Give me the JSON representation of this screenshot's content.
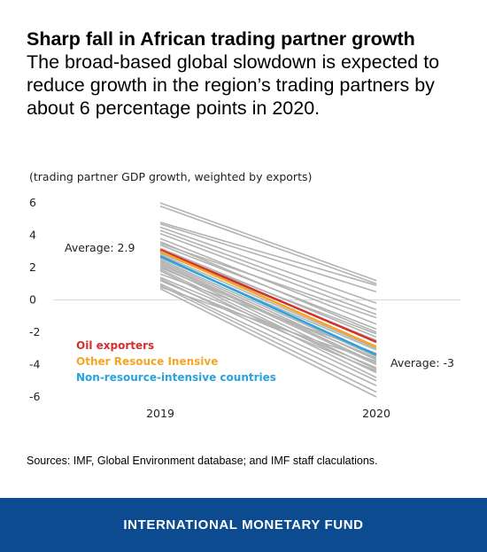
{
  "header": {
    "title": "Sharp fall in African trading partner growth",
    "subtitle": "The broad-based global slowdown is expected to reduce growth in the region’s trading partners by about 6 percentage points in 2020."
  },
  "colors": {
    "oil": "#d32f2f",
    "other_resource": "#f5a623",
    "non_resource": "#29a3dd",
    "countries": "#b3b3b3",
    "footer": "#0c4b8f"
  },
  "chart_data": {
    "type": "line",
    "title": "",
    "ylabel": "(trading partner GDP growth, weighted by exports)",
    "x": [
      "2019",
      "2020"
    ],
    "ylim": [
      -6,
      6
    ],
    "yticks": [
      "6",
      "4",
      "2",
      "0",
      "-2",
      "-4",
      "-6"
    ],
    "grid": false,
    "legend": "middle-left",
    "series": [
      {
        "name": "Oil exporters",
        "values": [
          3.1,
          -2.6
        ]
      },
      {
        "name": "Other Resouce Inensive",
        "values": [
          3.0,
          -2.9
        ]
      },
      {
        "name": "Non-resource-intensive countries",
        "values": [
          2.7,
          -3.4
        ]
      }
    ],
    "country_lines": [
      [
        6.0,
        1.2
      ],
      [
        5.8,
        1.0
      ],
      [
        4.8,
        0.9
      ],
      [
        4.7,
        0.5
      ],
      [
        4.5,
        -0.2
      ],
      [
        4.3,
        -0.6
      ],
      [
        4.1,
        -0.9
      ],
      [
        3.8,
        -1.5
      ],
      [
        3.6,
        -2.0
      ],
      [
        3.5,
        -1.1
      ],
      [
        3.4,
        -1.8
      ],
      [
        3.2,
        -2.3
      ],
      [
        3.0,
        -2.1
      ],
      [
        2.9,
        -2.5
      ],
      [
        2.8,
        -3.0
      ],
      [
        2.6,
        -3.1
      ],
      [
        2.5,
        -3.5
      ],
      [
        2.4,
        -3.7
      ],
      [
        2.3,
        -3.9
      ],
      [
        2.2,
        -4.0
      ],
      [
        2.1,
        -4.3
      ],
      [
        2.0,
        -3.6
      ],
      [
        1.9,
        -4.5
      ],
      [
        1.8,
        -4.8
      ],
      [
        1.6,
        -3.3
      ],
      [
        1.4,
        -4.2
      ],
      [
        1.3,
        -5.0
      ],
      [
        1.2,
        -4.4
      ],
      [
        1.0,
        -5.3
      ],
      [
        0.9,
        -5.7
      ],
      [
        0.8,
        -3.8
      ],
      [
        0.7,
        -6.0
      ]
    ],
    "annotations": [
      "Average: 2.9",
      "Average: -3"
    ]
  },
  "source": "Sources: IMF, Global Environment database; and IMF staff claculations.",
  "footer": {
    "label": "INTERNATIONAL MONETARY FUND"
  }
}
